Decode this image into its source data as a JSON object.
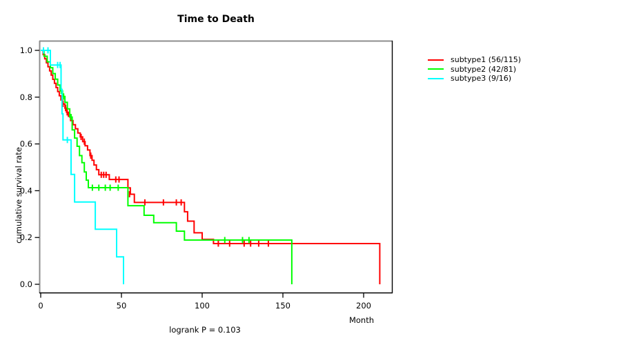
{
  "chart_data": {
    "type": "line",
    "subtype_plot": "kaplan-meier-step",
    "title": "Time to Death",
    "xlabel": "Month",
    "ylabel": "cumulative survival rate",
    "annotation": "logrank P = 0.103",
    "x_ticks": [
      0,
      50,
      100,
      150,
      200
    ],
    "y_ticks": [
      0.0,
      0.2,
      0.4,
      0.6,
      0.8,
      1.0
    ],
    "xlim": [
      0,
      218
    ],
    "ylim": [
      0,
      1
    ],
    "grid": false,
    "legend_position": "right-top",
    "axis_color": "#000000",
    "frame_gray": "#8c8c8c",
    "series": [
      {
        "name": "subtype1 (56/115)",
        "id": "subtype1",
        "color": "#ff0000",
        "events": [
          [
            1.5,
            0.982
          ],
          [
            2.5,
            0.964
          ],
          [
            3.5,
            0.947
          ],
          [
            4.5,
            0.93
          ],
          [
            5.5,
            0.912
          ],
          [
            6.5,
            0.894
          ],
          [
            7.5,
            0.876
          ],
          [
            8.5,
            0.859
          ],
          [
            9.5,
            0.841
          ],
          [
            10.5,
            0.824
          ],
          [
            11.5,
            0.806
          ],
          [
            12.5,
            0.788
          ],
          [
            13.5,
            0.771
          ],
          [
            15,
            0.753
          ],
          [
            16,
            0.735
          ],
          [
            17.2,
            0.718
          ],
          [
            18.5,
            0.7
          ],
          [
            20,
            0.682
          ],
          [
            21.5,
            0.665
          ],
          [
            23,
            0.647
          ],
          [
            24.5,
            0.63
          ],
          [
            26,
            0.61
          ],
          [
            27.5,
            0.592
          ],
          [
            29,
            0.574
          ],
          [
            30.5,
            0.55
          ],
          [
            31.8,
            0.53
          ],
          [
            33,
            0.51
          ],
          [
            34.5,
            0.49
          ],
          [
            36,
            0.468
          ],
          [
            42.5,
            0.448
          ],
          [
            54,
            0.412
          ],
          [
            55.5,
            0.385
          ],
          [
            58,
            0.35
          ],
          [
            89,
            0.31
          ],
          [
            91,
            0.27
          ],
          [
            95,
            0.22
          ],
          [
            100,
            0.192
          ],
          [
            107,
            0.174
          ],
          [
            210,
            0
          ]
        ],
        "censors": [
          [
            13.8,
            0.771
          ],
          [
            15.4,
            0.753
          ],
          [
            16.4,
            0.735
          ],
          [
            25,
            0.63
          ],
          [
            27,
            0.61
          ],
          [
            31,
            0.55
          ],
          [
            37.5,
            0.468
          ],
          [
            39,
            0.468
          ],
          [
            40.5,
            0.468
          ],
          [
            46.5,
            0.448
          ],
          [
            48.5,
            0.448
          ],
          [
            55,
            0.385
          ],
          [
            64.5,
            0.35
          ],
          [
            76,
            0.35
          ],
          [
            84,
            0.35
          ],
          [
            87,
            0.35
          ],
          [
            110,
            0.174
          ],
          [
            117,
            0.174
          ],
          [
            126,
            0.174
          ],
          [
            130,
            0.174
          ],
          [
            135,
            0.174
          ],
          [
            141,
            0.174
          ]
        ]
      },
      {
        "name": "subtype2 (42/81)",
        "id": "subtype2",
        "color": "#00ff00",
        "events": [
          [
            2,
            0.975
          ],
          [
            4,
            0.951
          ],
          [
            6,
            0.926
          ],
          [
            7.5,
            0.901
          ],
          [
            9,
            0.877
          ],
          [
            10.5,
            0.852
          ],
          [
            12,
            0.827
          ],
          [
            13.5,
            0.803
          ],
          [
            15,
            0.778
          ],
          [
            16.5,
            0.75
          ],
          [
            18,
            0.715
          ],
          [
            19.5,
            0.66
          ],
          [
            21,
            0.625
          ],
          [
            22.5,
            0.59
          ],
          [
            24,
            0.55
          ],
          [
            25.5,
            0.52
          ],
          [
            27,
            0.48
          ],
          [
            28.2,
            0.445
          ],
          [
            29.5,
            0.413
          ],
          [
            54,
            0.336
          ],
          [
            64,
            0.295
          ],
          [
            70,
            0.263
          ],
          [
            84,
            0.227
          ],
          [
            89,
            0.189
          ],
          [
            155.5,
            0
          ]
        ],
        "censors": [
          [
            12.7,
            0.827
          ],
          [
            14.2,
            0.803
          ],
          [
            18.8,
            0.715
          ],
          [
            32,
            0.413
          ],
          [
            36,
            0.413
          ],
          [
            40,
            0.413
          ],
          [
            43,
            0.413
          ],
          [
            48,
            0.413
          ],
          [
            114,
            0.189
          ],
          [
            125,
            0.189
          ],
          [
            129,
            0.189
          ]
        ]
      },
      {
        "name": "subtype3 (9/16)",
        "id": "subtype3",
        "color": "#00ffff",
        "events": [
          [
            6,
            0.9375
          ],
          [
            12.6,
            0.833
          ],
          [
            13.2,
            0.729
          ],
          [
            13.8,
            0.617
          ],
          [
            18.8,
            0.47
          ],
          [
            21,
            0.352
          ],
          [
            33.8,
            0.235
          ],
          [
            47,
            0.1175
          ],
          [
            51.3,
            0
          ]
        ],
        "censors": [
          [
            1.7,
            1.0
          ],
          [
            4.5,
            1.0
          ],
          [
            10.5,
            0.9375
          ],
          [
            12,
            0.9375
          ],
          [
            16.5,
            0.617
          ]
        ]
      }
    ]
  }
}
